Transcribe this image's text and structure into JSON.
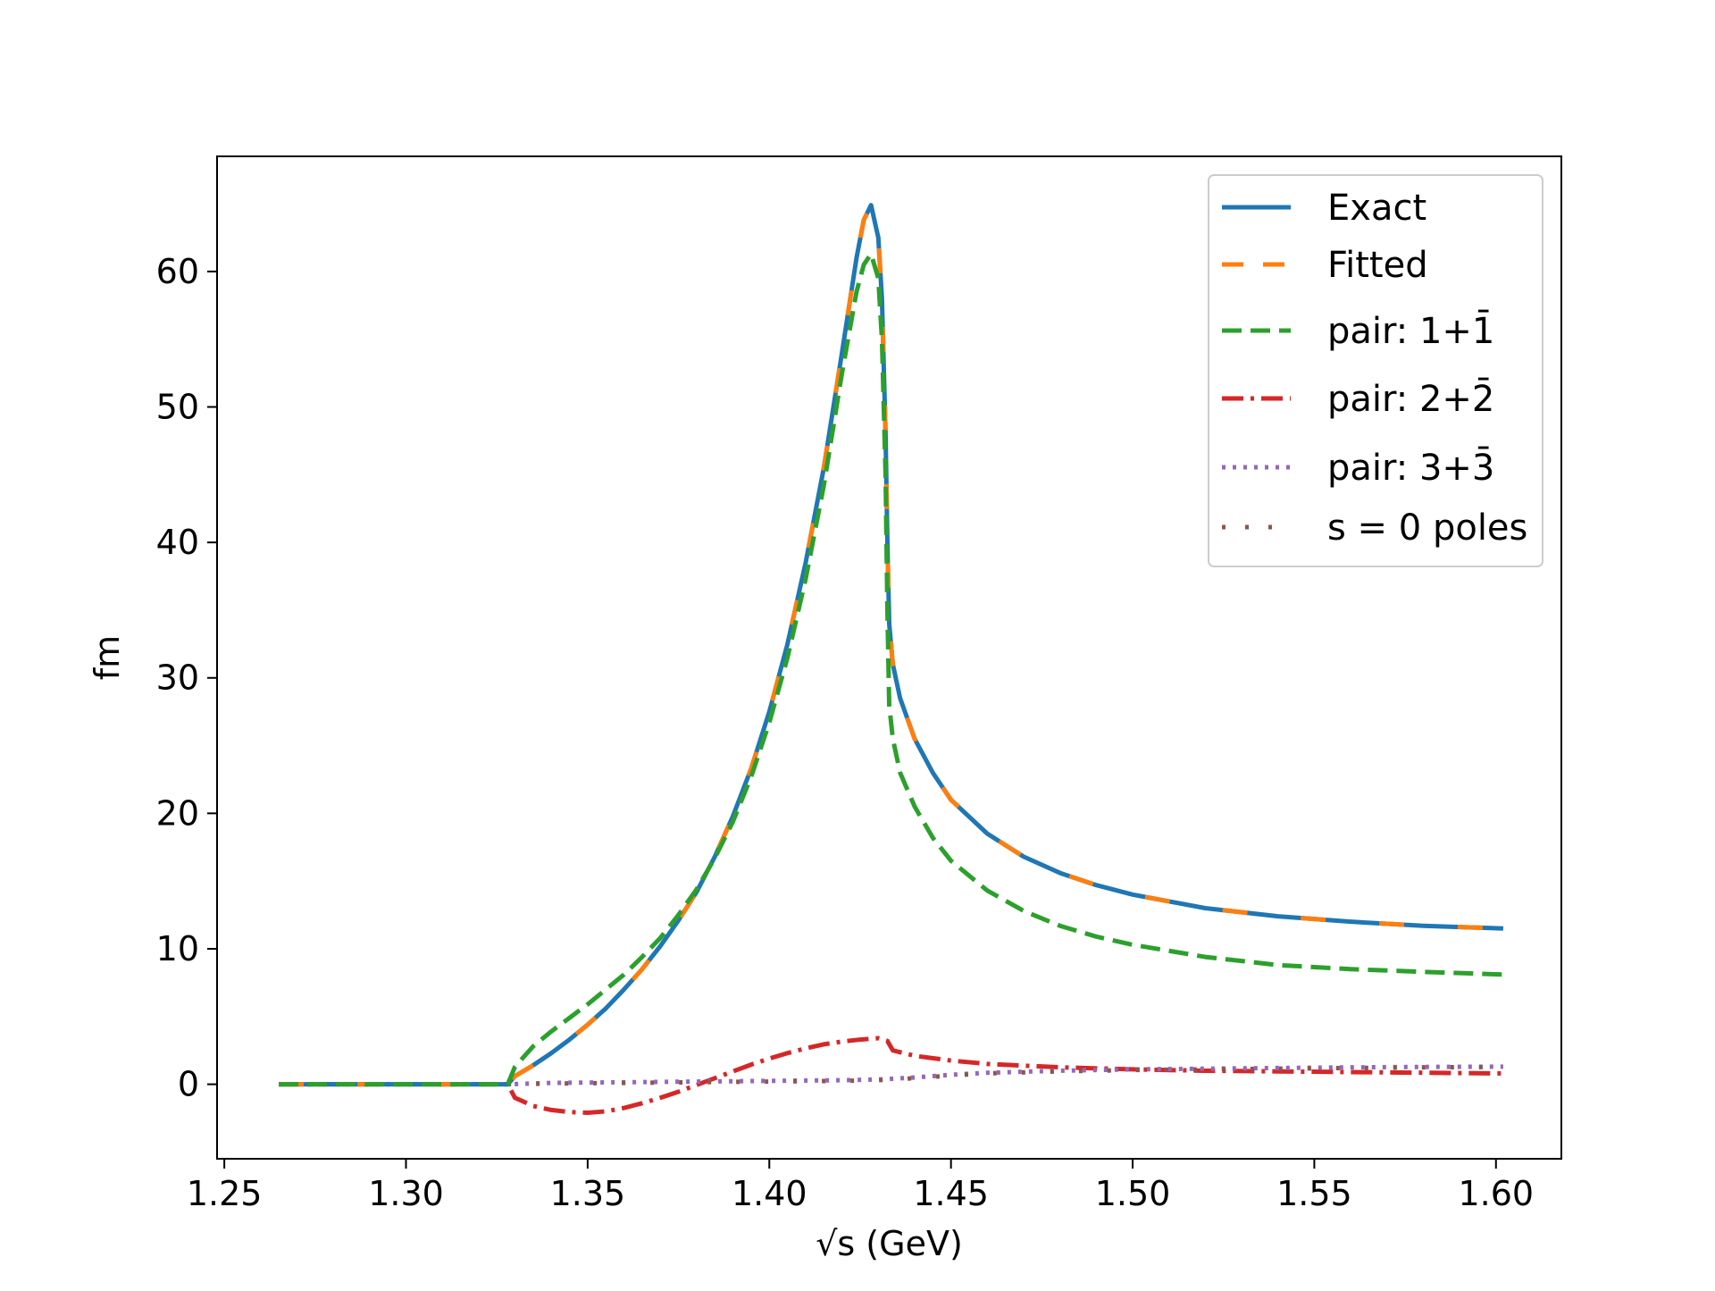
{
  "chart_data": {
    "type": "line",
    "title": "",
    "xlabel": "√s (GeV)",
    "ylabel": "fm",
    "xlim": [
      1.248,
      1.618
    ],
    "ylim": [
      -5.5,
      68.5
    ],
    "xticks": [
      1.25,
      1.3,
      1.35,
      1.4,
      1.45,
      1.5,
      1.55,
      1.6
    ],
    "xtick_labels": [
      "1.25",
      "1.30",
      "1.35",
      "1.40",
      "1.45",
      "1.50",
      "1.55",
      "1.60"
    ],
    "yticks": [
      0,
      10,
      20,
      30,
      40,
      50,
      60
    ],
    "ytick_labels": [
      "0",
      "10",
      "20",
      "30",
      "40",
      "50",
      "60"
    ],
    "grid": false,
    "legend_position": "top-right",
    "series": [
      {
        "name": "Exact",
        "color": "#1f77b4",
        "style": "solid",
        "x": [
          1.265,
          1.3,
          1.328,
          1.33,
          1.335,
          1.34,
          1.345,
          1.35,
          1.355,
          1.36,
          1.365,
          1.37,
          1.375,
          1.38,
          1.385,
          1.39,
          1.395,
          1.4,
          1.405,
          1.41,
          1.415,
          1.42,
          1.424,
          1.426,
          1.428,
          1.43,
          1.431,
          1.432,
          1.4325,
          1.433,
          1.434,
          1.436,
          1.44,
          1.445,
          1.45,
          1.46,
          1.47,
          1.48,
          1.49,
          1.5,
          1.52,
          1.54,
          1.56,
          1.58,
          1.602
        ],
        "y": [
          0,
          0,
          0,
          0.6,
          1.4,
          2.3,
          3.3,
          4.4,
          5.6,
          7.0,
          8.5,
          10.2,
          12.1,
          14.2,
          16.8,
          19.8,
          23.3,
          27.5,
          32.5,
          38.5,
          45.5,
          54.0,
          61.0,
          63.8,
          64.9,
          62.5,
          58.0,
          48.0,
          40.0,
          34.0,
          31.0,
          28.5,
          25.5,
          23.0,
          21.0,
          18.5,
          16.8,
          15.6,
          14.7,
          14.0,
          13.0,
          12.4,
          12.0,
          11.7,
          11.5
        ]
      },
      {
        "name": "Fitted",
        "color": "#ff7f0e",
        "style": "dashed",
        "x": [
          1.265,
          1.3,
          1.328,
          1.33,
          1.335,
          1.34,
          1.345,
          1.35,
          1.355,
          1.36,
          1.365,
          1.37,
          1.375,
          1.38,
          1.385,
          1.39,
          1.395,
          1.4,
          1.405,
          1.41,
          1.415,
          1.42,
          1.424,
          1.426,
          1.428,
          1.43,
          1.431,
          1.432,
          1.4325,
          1.433,
          1.434,
          1.436,
          1.44,
          1.445,
          1.45,
          1.46,
          1.47,
          1.48,
          1.49,
          1.5,
          1.52,
          1.54,
          1.56,
          1.58,
          1.602
        ],
        "y": [
          0,
          0,
          0,
          0.6,
          1.4,
          2.3,
          3.3,
          4.4,
          5.6,
          7.0,
          8.5,
          10.2,
          12.1,
          14.2,
          16.8,
          19.8,
          23.3,
          27.5,
          32.5,
          38.5,
          45.5,
          54.0,
          61.0,
          63.8,
          64.9,
          62.5,
          58.0,
          48.0,
          40.0,
          34.0,
          31.0,
          28.5,
          25.5,
          23.0,
          21.0,
          18.5,
          16.8,
          15.6,
          14.7,
          14.0,
          13.0,
          12.4,
          12.0,
          11.7,
          11.5
        ]
      },
      {
        "name": "pair: 1+1̄",
        "color": "#2ca02c",
        "style": "dashed",
        "x": [
          1.265,
          1.3,
          1.328,
          1.33,
          1.335,
          1.34,
          1.345,
          1.35,
          1.355,
          1.36,
          1.365,
          1.37,
          1.375,
          1.38,
          1.385,
          1.39,
          1.395,
          1.4,
          1.405,
          1.41,
          1.415,
          1.42,
          1.424,
          1.426,
          1.428,
          1.43,
          1.431,
          1.432,
          1.4325,
          1.433,
          1.434,
          1.436,
          1.44,
          1.445,
          1.45,
          1.46,
          1.47,
          1.48,
          1.49,
          1.5,
          1.52,
          1.54,
          1.56,
          1.58,
          1.602
        ],
        "y": [
          0,
          0,
          0,
          1.3,
          2.8,
          3.9,
          4.9,
          5.9,
          7.0,
          8.1,
          9.4,
          10.8,
          12.5,
          14.4,
          16.7,
          19.4,
          22.7,
          26.7,
          31.5,
          37.3,
          44.2,
          52.5,
          58.5,
          60.5,
          61.3,
          59.5,
          55.0,
          45.0,
          35.0,
          28.0,
          25.5,
          23.0,
          20.5,
          18.2,
          16.5,
          14.3,
          12.8,
          11.7,
          10.9,
          10.3,
          9.4,
          8.8,
          8.5,
          8.3,
          8.1
        ]
      },
      {
        "name": "pair: 2+2̄",
        "color": "#d62728",
        "style": "dashdot",
        "x": [
          1.265,
          1.3,
          1.328,
          1.33,
          1.335,
          1.34,
          1.345,
          1.35,
          1.355,
          1.36,
          1.365,
          1.37,
          1.375,
          1.38,
          1.385,
          1.39,
          1.395,
          1.4,
          1.405,
          1.41,
          1.415,
          1.42,
          1.425,
          1.43,
          1.4325,
          1.434,
          1.44,
          1.45,
          1.46,
          1.48,
          1.5,
          1.52,
          1.54,
          1.56,
          1.58,
          1.602
        ],
        "y": [
          0,
          0,
          0,
          -1.0,
          -1.6,
          -1.9,
          -2.05,
          -2.1,
          -2.0,
          -1.75,
          -1.4,
          -1.0,
          -0.55,
          -0.05,
          0.45,
          0.95,
          1.45,
          1.9,
          2.3,
          2.65,
          2.95,
          3.15,
          3.3,
          3.4,
          3.2,
          2.5,
          2.1,
          1.75,
          1.5,
          1.25,
          1.1,
          1.0,
          0.95,
          0.9,
          0.85,
          0.8
        ]
      },
      {
        "name": "pair: 3+3̄",
        "color": "#9467bd",
        "style": "dotted",
        "x": [
          1.265,
          1.3,
          1.328,
          1.34,
          1.36,
          1.38,
          1.4,
          1.42,
          1.43,
          1.44,
          1.45,
          1.46,
          1.48,
          1.5,
          1.52,
          1.54,
          1.56,
          1.58,
          1.602
        ],
        "y": [
          0,
          0,
          0,
          0.1,
          0.15,
          0.2,
          0.25,
          0.3,
          0.35,
          0.5,
          0.7,
          0.85,
          1.0,
          1.1,
          1.15,
          1.2,
          1.25,
          1.28,
          1.3
        ]
      },
      {
        "name": "s = 0 poles",
        "color": "#8c564b",
        "style": "loosely-dotted",
        "x": [
          1.265,
          1.3,
          1.328,
          1.34,
          1.36,
          1.38,
          1.4,
          1.42,
          1.43,
          1.44,
          1.45,
          1.46,
          1.48,
          1.5,
          1.52,
          1.54,
          1.56,
          1.58,
          1.602
        ],
        "y": [
          0,
          0,
          0,
          0.05,
          0.1,
          0.15,
          0.2,
          0.25,
          0.3,
          0.45,
          0.65,
          0.8,
          0.95,
          1.05,
          1.1,
          1.15,
          1.2,
          1.25,
          1.28
        ]
      }
    ]
  }
}
